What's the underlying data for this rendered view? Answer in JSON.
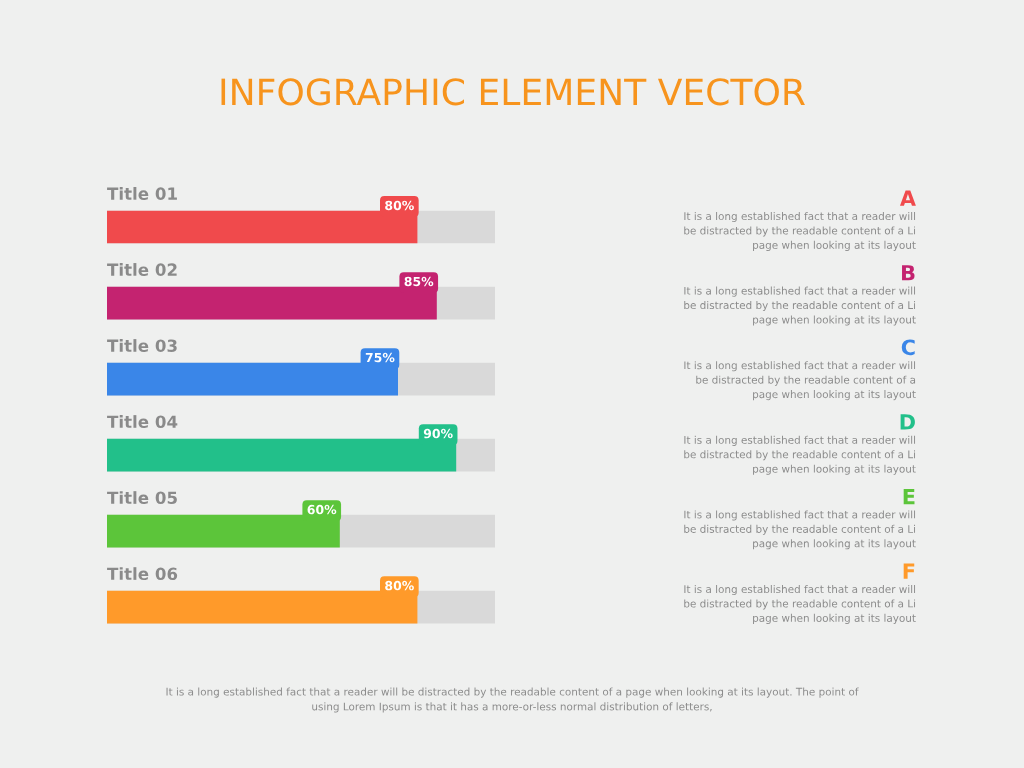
{
  "chart_data": {
    "type": "bar",
    "orientation": "horizontal",
    "title": "INFOGRAPHIC ELEMENT VECTOR",
    "categories": [
      "Title 01",
      "Title 02",
      "Title 03",
      "Title 04",
      "Title 05",
      "Title 06"
    ],
    "series": [
      {
        "colors": [
          "#f04a4c",
          "#c42370",
          "#3a86e8",
          "#22c08a",
          "#5cc53a",
          "#ff9a2a"
        ],
        "values": [
          80,
          85,
          75,
          90,
          60,
          80
        ],
        "value_labels": [
          "80%",
          "85%",
          "75%",
          "90%",
          "60%",
          "80%"
        ]
      }
    ],
    "xlim": [
      0,
      100
    ],
    "annotations": [
      "A",
      "It is a long established fact that a reader will\nbe distracted by the readable content of a Li\npage when looking at its layout",
      "B",
      "It is a long established fact that a reader will\nbe distracted by the readable content of a Li\npage when looking at its layout",
      "C",
      "It is a long established fact that a reader will\nbe distracted by the readable content of a\npage when looking at its layout",
      "D",
      "It is a long established fact that a reader will\nbe distracted by the readable content of a Li\npage when looking at its layout",
      "E",
      "It is a long established fact that a reader will\nbe distracted by the readable content of a Li\npage when looking at its layout",
      "F",
      "It is a long established fact that a reader will\nbe distracted by the readable content of a Li\npage when looking at its layout",
      "It is a long established fact that a reader will be distracted by the readable content of a page when looking at its layout. The point of\nusing Lorem Ipsum is that it has a more-or-less normal distribution of letters,"
    ]
  }
}
